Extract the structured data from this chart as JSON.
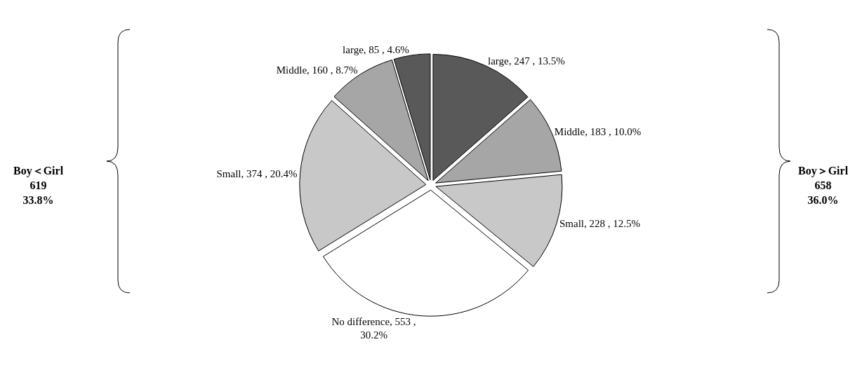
{
  "chart_data": {
    "type": "pie",
    "categories": [
      "large",
      "Middle",
      "Small",
      "No difference",
      "Small",
      "Middle",
      "large"
    ],
    "values": [
      247,
      183,
      228,
      553,
      374,
      160,
      85
    ],
    "colors": [
      "#595959",
      "#a6a6a6",
      "#c8c8c8",
      "#ffffff",
      "#c8c8c8",
      "#a6a6a6",
      "#595959"
    ],
    "value_labels": [
      "247 , 13.5%",
      "183 , 10.0%",
      "228 , 12.5%",
      "553 ,\n30.2%",
      "374 , 20.4%",
      "160 , 8.7%",
      "85 , 4.6%"
    ],
    "annotations": [
      "Boy＞Girl\n658\n36.0%",
      "Boy＜Girl\n619\n33.8%"
    ],
    "legend": false
  }
}
